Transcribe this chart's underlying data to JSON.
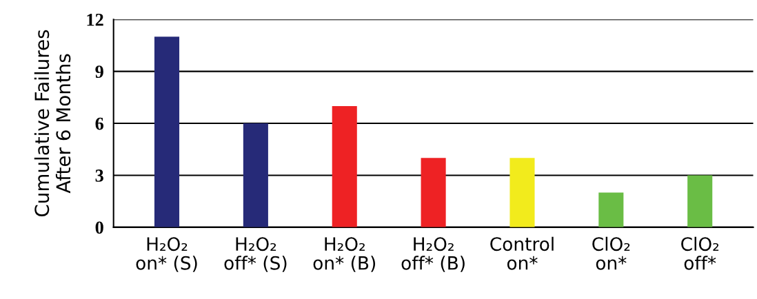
{
  "chart_data": {
    "type": "bar",
    "ylabel": "Cumulative Failures\nAfter 6 Months",
    "categories": [
      "H₂O₂\non* (S)",
      "H₂O₂\noff* (S)",
      "H₂O₂\non* (B)",
      "H₂O₂\noff* (B)",
      "Control\non*",
      "ClO₂\non*",
      "ClO₂\noff*"
    ],
    "values": [
      11,
      6,
      7,
      4,
      4,
      2,
      3
    ],
    "colors": [
      "#262a78",
      "#262a78",
      "#ee2224",
      "#ee2224",
      "#f2eb1c",
      "#6abd45",
      "#6abd45"
    ],
    "ylim": [
      0,
      12
    ],
    "yticks": [
      0,
      3,
      6,
      9,
      12
    ],
    "grid": "y"
  }
}
